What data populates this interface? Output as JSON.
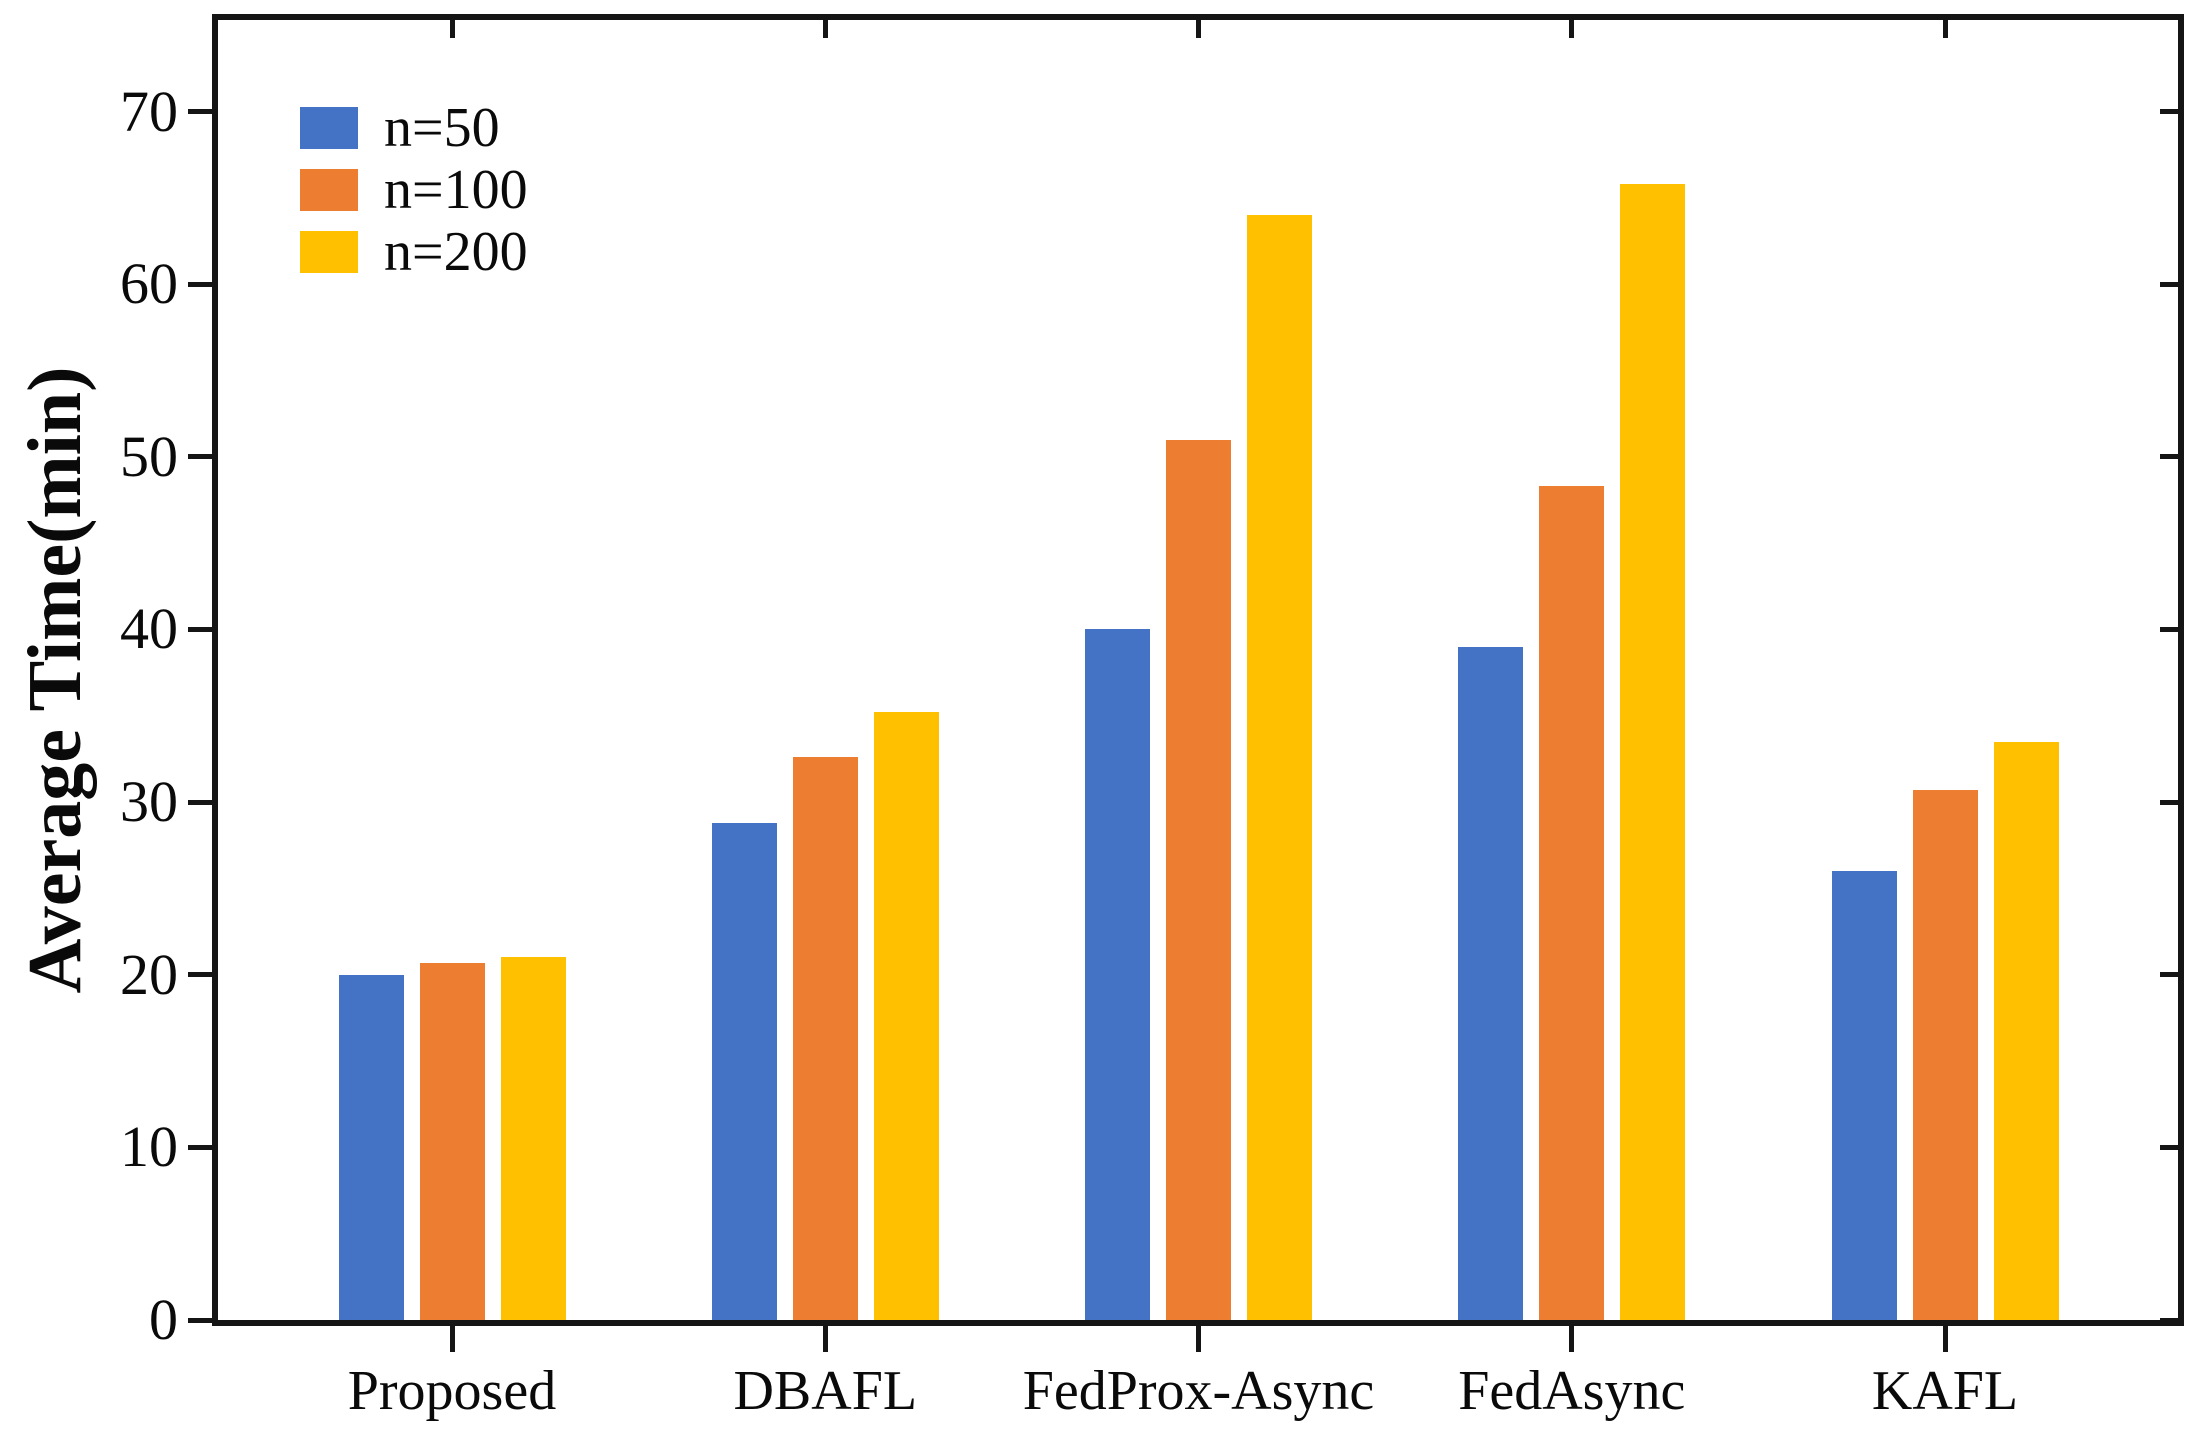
{
  "chart_data": {
    "type": "bar",
    "title": "",
    "xlabel": "",
    "ylabel": "Average Time(min)",
    "categories": [
      "Proposed",
      "DBAFL",
      "FedProx-Async",
      "FedAsync",
      "KAFL"
    ],
    "series": [
      {
        "name": "n=50",
        "color": "#4472C4",
        "values": [
          20.0,
          28.8,
          40.0,
          39.0,
          26.0
        ]
      },
      {
        "name": "n=100",
        "color": "#ED7D31",
        "values": [
          20.7,
          32.6,
          51.0,
          48.3,
          30.7
        ]
      },
      {
        "name": "n=200",
        "color": "#FFC000",
        "values": [
          21.0,
          35.2,
          64.0,
          65.8,
          33.5
        ]
      }
    ],
    "ylim": [
      0,
      75.3
    ],
    "yticks": [
      0,
      10,
      20,
      30,
      40,
      50,
      60,
      70
    ],
    "legend": {
      "position": "upper-left",
      "entries": [
        "n=50",
        "n=100",
        "n=200"
      ]
    },
    "grid": false,
    "axis_color": "#151515",
    "background_color": "#ffffff"
  }
}
